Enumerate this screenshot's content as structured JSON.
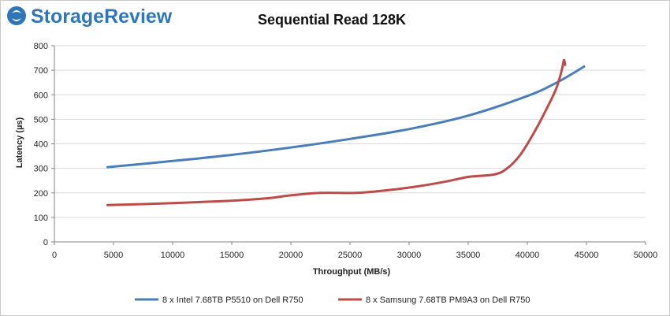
{
  "brand": {
    "name": "StorageReview",
    "color": "#2f77b8",
    "icon": "storagereview-logo-icon"
  },
  "colors": {
    "series1": "#4a7ebb",
    "series2": "#be4b48",
    "grid": "#d9d9d9",
    "axis": "#868686"
  },
  "chart_data": {
    "type": "line",
    "title": "Sequential Read 128K",
    "xlabel": "Throughput (MB/s)",
    "ylabel": "Latency (µs)",
    "xlim": [
      0,
      50000
    ],
    "ylim": [
      0,
      800
    ],
    "xticks": [
      0,
      5000,
      10000,
      15000,
      20000,
      25000,
      30000,
      35000,
      40000,
      45000,
      50000
    ],
    "yticks": [
      0,
      100,
      200,
      300,
      400,
      500,
      600,
      700,
      800
    ],
    "grid": "horizontal",
    "legend": "bottom",
    "series": [
      {
        "name": "8 x Intel 7.68TB P5510 on Dell R750",
        "color": "#4a7ebb",
        "points": [
          [
            4500,
            305
          ],
          [
            10000,
            330
          ],
          [
            15000,
            355
          ],
          [
            20000,
            385
          ],
          [
            25000,
            420
          ],
          [
            30000,
            460
          ],
          [
            35000,
            515
          ],
          [
            40000,
            595
          ],
          [
            42500,
            650
          ],
          [
            44800,
            715
          ]
        ]
      },
      {
        "name": "8 x Samsung 7.68TB PM9A3 on Dell R750",
        "color": "#be4b48",
        "points": [
          [
            4500,
            150
          ],
          [
            10000,
            158
          ],
          [
            15000,
            168
          ],
          [
            18000,
            178
          ],
          [
            20000,
            190
          ],
          [
            22500,
            200
          ],
          [
            25500,
            200
          ],
          [
            28000,
            210
          ],
          [
            30500,
            225
          ],
          [
            33000,
            245
          ],
          [
            35000,
            265
          ],
          [
            37200,
            275
          ],
          [
            38300,
            300
          ],
          [
            39400,
            355
          ],
          [
            40500,
            440
          ],
          [
            41600,
            540
          ],
          [
            42400,
            620
          ],
          [
            42800,
            680
          ],
          [
            43000,
            720
          ],
          [
            43100,
            742
          ],
          [
            43200,
            722
          ]
        ]
      }
    ]
  }
}
